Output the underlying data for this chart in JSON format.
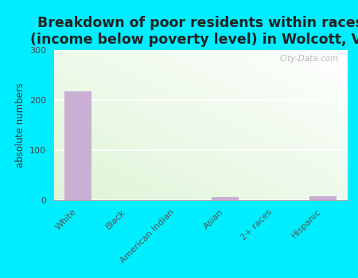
{
  "title": "Breakdown of poor residents within races\n(income below poverty level) in Wolcott, VT",
  "categories": [
    "White",
    "Black",
    "American Indian",
    "Asian",
    "2+ races",
    "Hispanic"
  ],
  "values": [
    218,
    0,
    0,
    6,
    0,
    8
  ],
  "bar_color": "#c9afd4",
  "ylabel": "absolute numbers",
  "ylim": [
    0,
    300
  ],
  "yticks": [
    0,
    100,
    200,
    300
  ],
  "outer_bg": "#00eeff",
  "title_fontsize": 12.5,
  "axis_label_fontsize": 8.5,
  "tick_fontsize": 8,
  "watermark": "City-Data.com",
  "grid_color": "#ccddcc"
}
